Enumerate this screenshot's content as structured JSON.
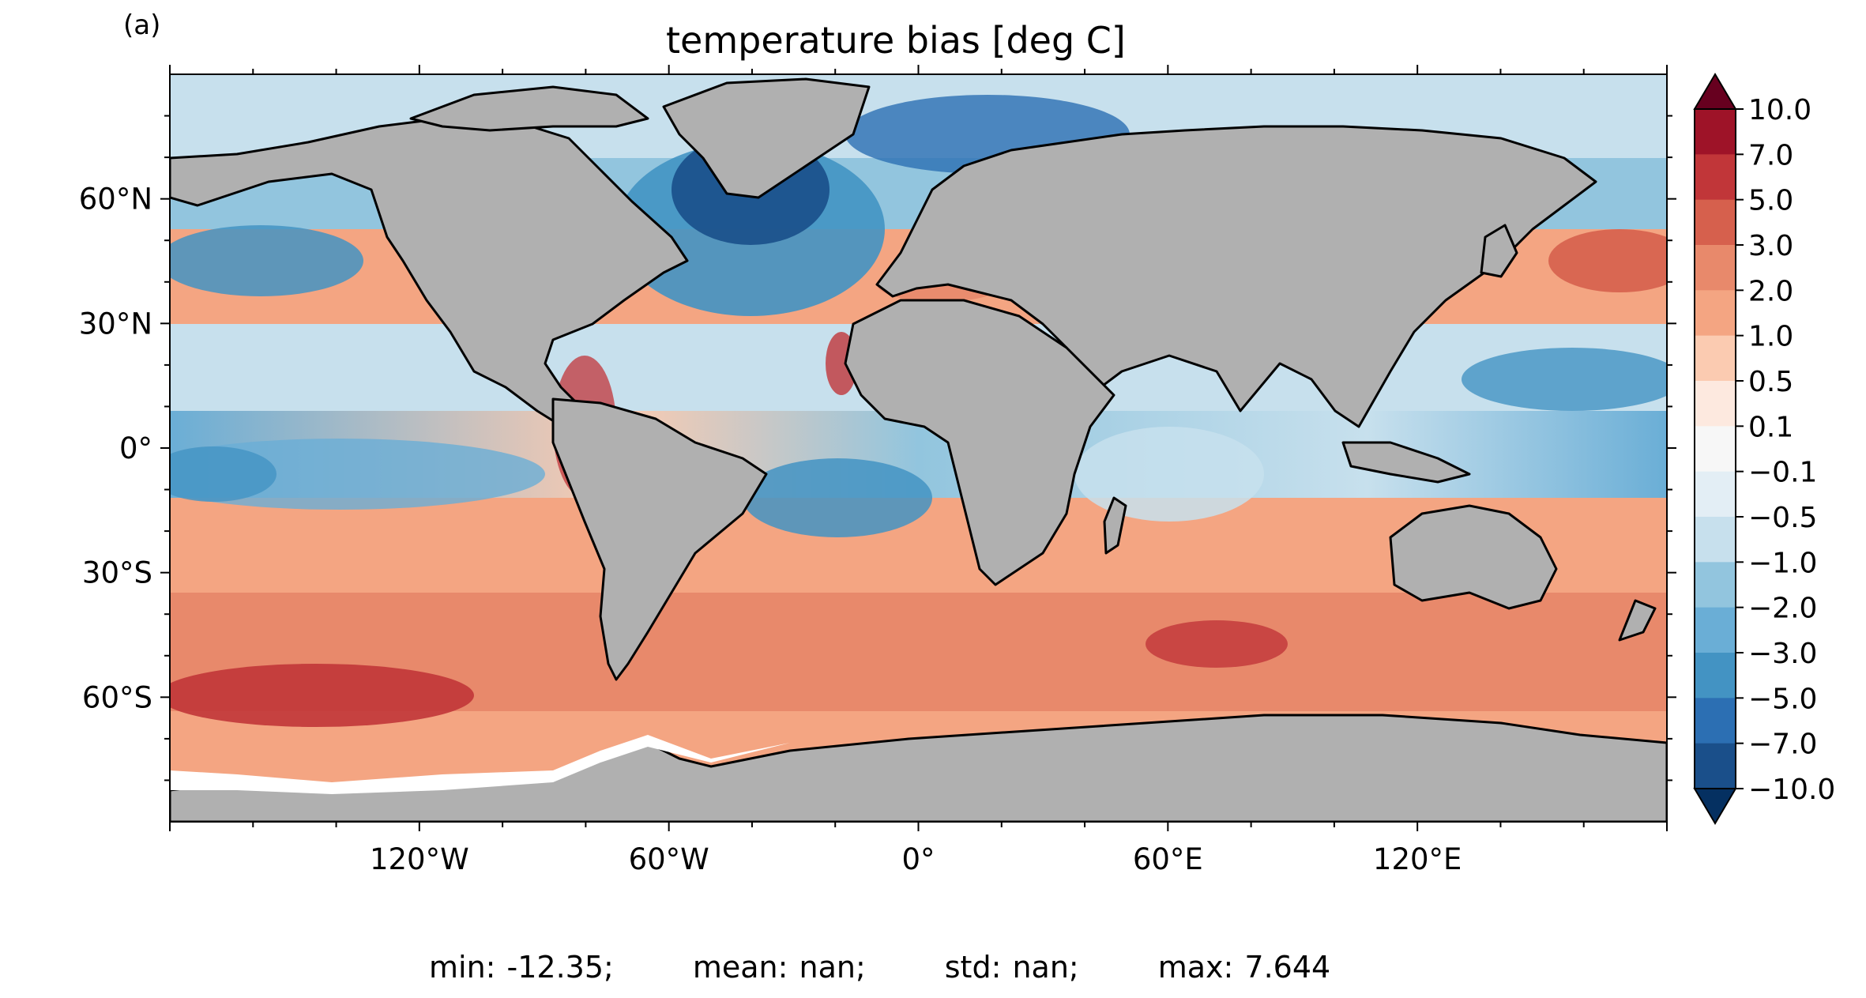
{
  "panel_label": "(a)",
  "title": "temperature bias [deg C]",
  "x_ticks": [
    "120°W",
    "60°W",
    "0°",
    "60°E",
    "120°E"
  ],
  "y_ticks": [
    "60°N",
    "30°N",
    "0°",
    "30°S",
    "60°S"
  ],
  "colorbar": {
    "labels": [
      "10.0",
      "7.0",
      "5.0",
      "3.0",
      "2.0",
      "1.0",
      "0.5",
      "0.1",
      "−0.1",
      "−0.5",
      "−1.0",
      "−2.0",
      "−3.0",
      "−5.0",
      "−7.0",
      "−10.0"
    ],
    "colors": [
      "#67001f",
      "#9e1328",
      "#c13639",
      "#d6604d",
      "#e8896b",
      "#f4a582",
      "#fbcbb1",
      "#fde9df",
      "#f7f7f7",
      "#e3eef5",
      "#c7e0ed",
      "#92c5de",
      "#6aaed6",
      "#4393c3",
      "#2c6fb3",
      "#1a4f8a",
      "#053061"
    ]
  },
  "stats": {
    "min": "min: -12.35;",
    "mean": "mean: nan;",
    "std": "std: nan;",
    "max": "max: 7.644"
  },
  "colors": {
    "land": "#b0b0b0",
    "ice": "#ffffff",
    "coast": "#000000"
  }
}
